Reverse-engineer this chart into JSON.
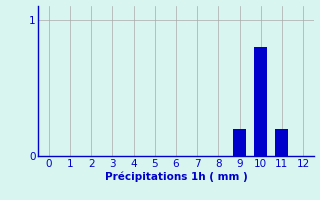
{
  "categories": [
    0,
    1,
    2,
    3,
    4,
    5,
    6,
    7,
    8,
    9,
    10,
    11,
    12
  ],
  "values": [
    0,
    0,
    0,
    0,
    0,
    0,
    0,
    0,
    0,
    0.2,
    0.8,
    0.2,
    0
  ],
  "bar_color": "#0000cc",
  "background_color": "#d8f5f0",
  "grid_color": "#aaaaaa",
  "xlabel": "Précipitations 1h ( mm )",
  "ylim": [
    0,
    1.1
  ],
  "xlim": [
    -0.5,
    12.5
  ],
  "yticks": [
    0,
    1
  ],
  "xticks": [
    0,
    1,
    2,
    3,
    4,
    5,
    6,
    7,
    8,
    9,
    10,
    11,
    12
  ],
  "tick_color": "#0000cc",
  "label_color": "#0000cc",
  "axis_color": "#0000cc",
  "font_size": 7.5,
  "bar_width": 0.6
}
